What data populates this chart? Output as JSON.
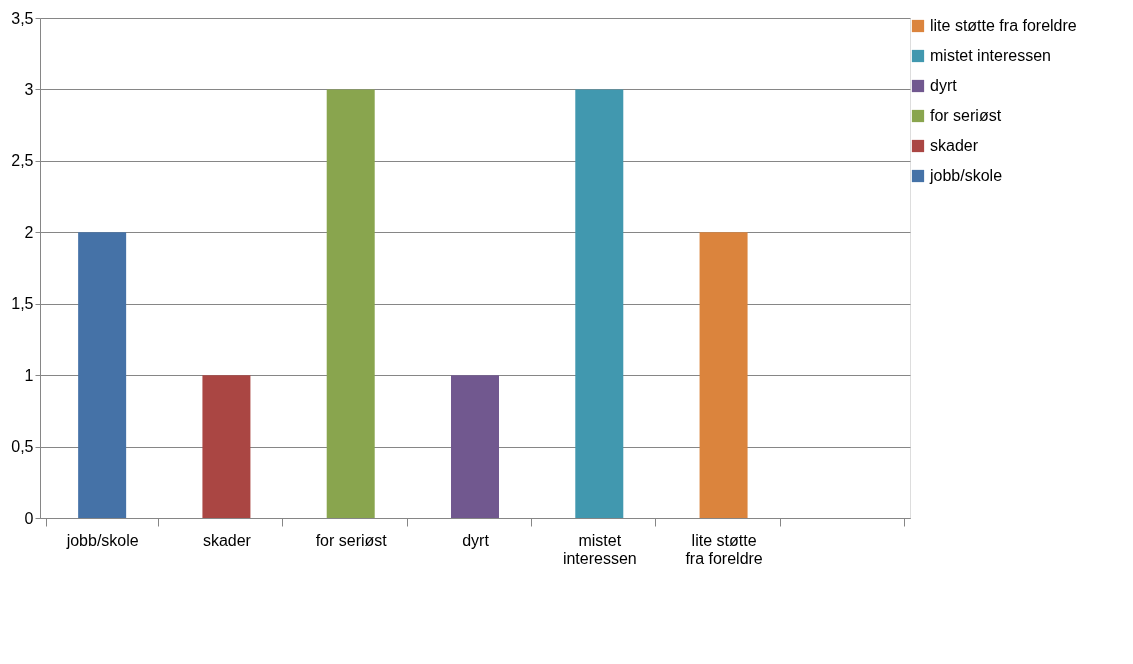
{
  "chart_data": {
    "type": "bar",
    "categories": [
      "jobb/skole",
      "skader",
      "for seriøst",
      "dyrt",
      "mistet interessen",
      "lite støtte fra foreldre",
      null
    ],
    "series": [
      {
        "name": "jobb/skole",
        "color": "#4572a7",
        "values": [
          2,
          null,
          null,
          null,
          null,
          null,
          null
        ]
      },
      {
        "name": "skader",
        "color": "#aa4643",
        "values": [
          null,
          1,
          null,
          null,
          null,
          null,
          null
        ]
      },
      {
        "name": "for seriøst",
        "color": "#89a54e",
        "values": [
          null,
          null,
          3,
          null,
          null,
          null,
          null
        ]
      },
      {
        "name": "dyrt",
        "color": "#71588f",
        "values": [
          null,
          null,
          null,
          1,
          null,
          null,
          null
        ]
      },
      {
        "name": "mistet interessen",
        "color": "#4198af",
        "values": [
          null,
          null,
          null,
          null,
          3,
          null,
          null
        ]
      },
      {
        "name": "lite støtte fra foreldre",
        "color": "#db843d",
        "values": [
          null,
          null,
          null,
          null,
          null,
          2,
          null
        ]
      }
    ],
    "ylim": [
      0,
      3.5
    ],
    "yticks": [
      0,
      {
        "value": 0.5,
        "label": "0,5"
      },
      1,
      {
        "value": 1.5,
        "label": "1,5"
      },
      2,
      {
        "value": 2.5,
        "label": "2,5"
      },
      3,
      {
        "value": 3.5,
        "label": "3,5"
      }
    ],
    "grid": "y",
    "legend": "right"
  }
}
